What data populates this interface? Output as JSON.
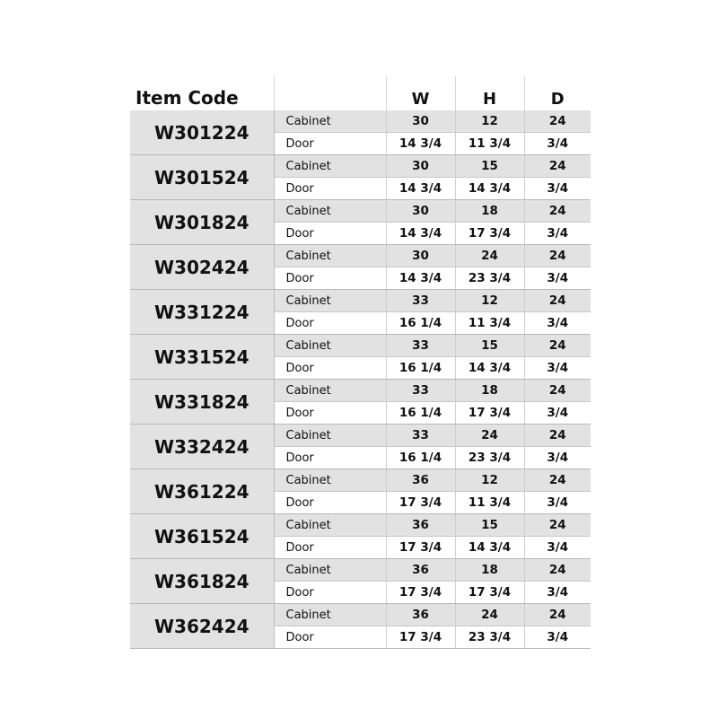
{
  "header": {
    "item_code": "Item Code",
    "part": "",
    "w": "W",
    "h": "H",
    "d": "D"
  },
  "items": [
    {
      "code": "W301224",
      "cabinet": {
        "label": "Cabinet",
        "w": "30",
        "h": "12",
        "d": "24"
      },
      "door": {
        "label": "Door",
        "w": "14 3/4",
        "h": "11 3/4",
        "d": "3/4"
      }
    },
    {
      "code": "W301524",
      "cabinet": {
        "label": "Cabinet",
        "w": "30",
        "h": "15",
        "d": "24"
      },
      "door": {
        "label": "Door",
        "w": "14 3/4",
        "h": "14 3/4",
        "d": "3/4"
      }
    },
    {
      "code": "W301824",
      "cabinet": {
        "label": "Cabinet",
        "w": "30",
        "h": "18",
        "d": "24"
      },
      "door": {
        "label": "Door",
        "w": "14 3/4",
        "h": "17 3/4",
        "d": "3/4"
      }
    },
    {
      "code": "W302424",
      "cabinet": {
        "label": "Cabinet",
        "w": "30",
        "h": "24",
        "d": "24"
      },
      "door": {
        "label": "Door",
        "w": "14 3/4",
        "h": "23 3/4",
        "d": "3/4"
      }
    },
    {
      "code": "W331224",
      "cabinet": {
        "label": "Cabinet",
        "w": "33",
        "h": "12",
        "d": "24"
      },
      "door": {
        "label": "Door",
        "w": "16 1/4",
        "h": "11 3/4",
        "d": "3/4"
      }
    },
    {
      "code": "W331524",
      "cabinet": {
        "label": "Cabinet",
        "w": "33",
        "h": "15",
        "d": "24"
      },
      "door": {
        "label": "Door",
        "w": "16 1/4",
        "h": "14 3/4",
        "d": "3/4"
      }
    },
    {
      "code": "W331824",
      "cabinet": {
        "label": "Cabinet",
        "w": "33",
        "h": "18",
        "d": "24"
      },
      "door": {
        "label": "Door",
        "w": "16 1/4",
        "h": "17 3/4",
        "d": "3/4"
      }
    },
    {
      "code": "W332424",
      "cabinet": {
        "label": "Cabinet",
        "w": "33",
        "h": "24",
        "d": "24"
      },
      "door": {
        "label": "Door",
        "w": "16 1/4",
        "h": "23 3/4",
        "d": "3/4"
      }
    },
    {
      "code": "W361224",
      "cabinet": {
        "label": "Cabinet",
        "w": "36",
        "h": "12",
        "d": "24"
      },
      "door": {
        "label": "Door",
        "w": "17 3/4",
        "h": "11 3/4",
        "d": "3/4"
      }
    },
    {
      "code": "W361524",
      "cabinet": {
        "label": "Cabinet",
        "w": "36",
        "h": "15",
        "d": "24"
      },
      "door": {
        "label": "Door",
        "w": "17 3/4",
        "h": "14 3/4",
        "d": "3/4"
      }
    },
    {
      "code": "W361824",
      "cabinet": {
        "label": "Cabinet",
        "w": "36",
        "h": "18",
        "d": "24"
      },
      "door": {
        "label": "Door",
        "w": "17 3/4",
        "h": "17 3/4",
        "d": "3/4"
      }
    },
    {
      "code": "W362424",
      "cabinet": {
        "label": "Cabinet",
        "w": "36",
        "h": "24",
        "d": "24"
      },
      "door": {
        "label": "Door",
        "w": "17 3/4",
        "h": "23 3/4",
        "d": "3/4"
      }
    }
  ]
}
